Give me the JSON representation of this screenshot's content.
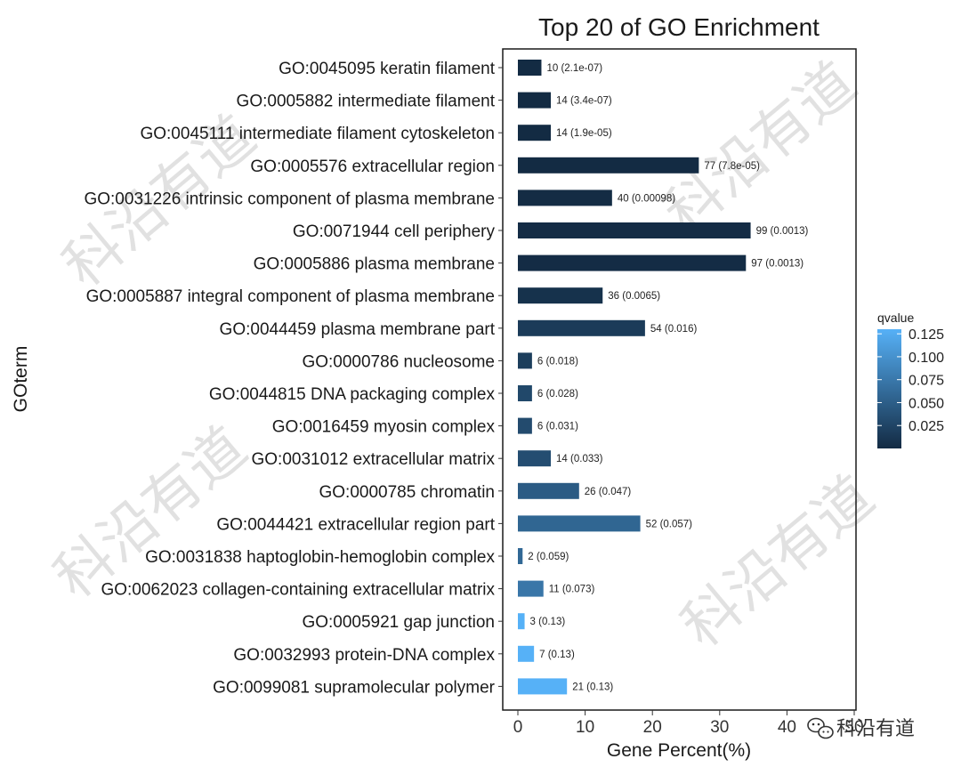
{
  "chart_data": {
    "type": "bar",
    "orientation": "horizontal",
    "title": "Top 20 of GO Enrichment",
    "xlabel": "Gene Percent(%)",
    "ylabel": "GOterm",
    "xlim": [
      0,
      50
    ],
    "xticks": [
      0,
      10,
      20,
      30,
      40,
      50
    ],
    "grid": false,
    "legend": {
      "title": "qvalue",
      "placement": "right",
      "ticks": [
        0.025,
        0.05,
        0.075,
        0.1,
        0.125
      ],
      "tick_labels": [
        "0.025",
        "0.050",
        "0.075",
        "0.100",
        "0.125"
      ],
      "range": [
        0.0,
        0.13
      ],
      "color_low": "#132b43",
      "color_high": "#56b1f7"
    },
    "categories": [
      "GO:0045095 keratin filament",
      "GO:0005882 intermediate filament",
      "GO:0045111 intermediate filament cytoskeleton",
      "GO:0005576 extracellular region",
      "GO:0031226 intrinsic component of plasma membrane",
      "GO:0071944 cell periphery",
      "GO:0005886 plasma membrane",
      "GO:0005887 integral component of plasma membrane",
      "GO:0044459 plasma membrane part",
      "GO:0000786 nucleosome",
      "GO:0044815 DNA packaging complex",
      "GO:0016459 myosin complex",
      "GO:0031012 extracellular matrix",
      "GO:0000785 chromatin",
      "GO:0044421 extracellular region part",
      "GO:0031838 haptoglobin-hemoglobin complex",
      "GO:0062023 collagen-containing extracellular matrix",
      "GO:0005921 gap junction",
      "GO:0032993 protein-DNA complex",
      "GO:0099081 supramolecular polymer"
    ],
    "values": [
      3.5,
      4.9,
      4.9,
      26.9,
      14.0,
      34.6,
      33.9,
      12.6,
      18.9,
      2.1,
      2.1,
      2.1,
      4.9,
      9.1,
      18.2,
      0.7,
      3.8,
      1.0,
      2.4,
      7.3
    ],
    "qvalues": [
      2.1e-07,
      3.4e-07,
      1.9e-05,
      7.8e-05,
      0.00098,
      0.0013,
      0.0013,
      0.0065,
      0.016,
      0.018,
      0.028,
      0.031,
      0.033,
      0.047,
      0.057,
      0.059,
      0.073,
      0.13,
      0.13,
      0.13
    ],
    "data_labels": [
      "10 (2.1e-07)",
      "14 (3.4e-07)",
      "14 (1.9e-05)",
      "77 (7.8e-05)",
      "40 (0.00098)",
      "99 (0.0013)",
      "97 (0.0013)",
      "36 (0.0065)",
      "54 (0.016)",
      "6 (0.018)",
      "6 (0.028)",
      "6 (0.031)",
      "14 (0.033)",
      "26 (0.047)",
      "52 (0.057)",
      "2 (0.059)",
      "11 (0.073)",
      "3 (0.13)",
      "7 (0.13)",
      "21 (0.13)"
    ]
  },
  "watermarks": {
    "text": "科沿有道",
    "corner_text": "科沿有道"
  }
}
